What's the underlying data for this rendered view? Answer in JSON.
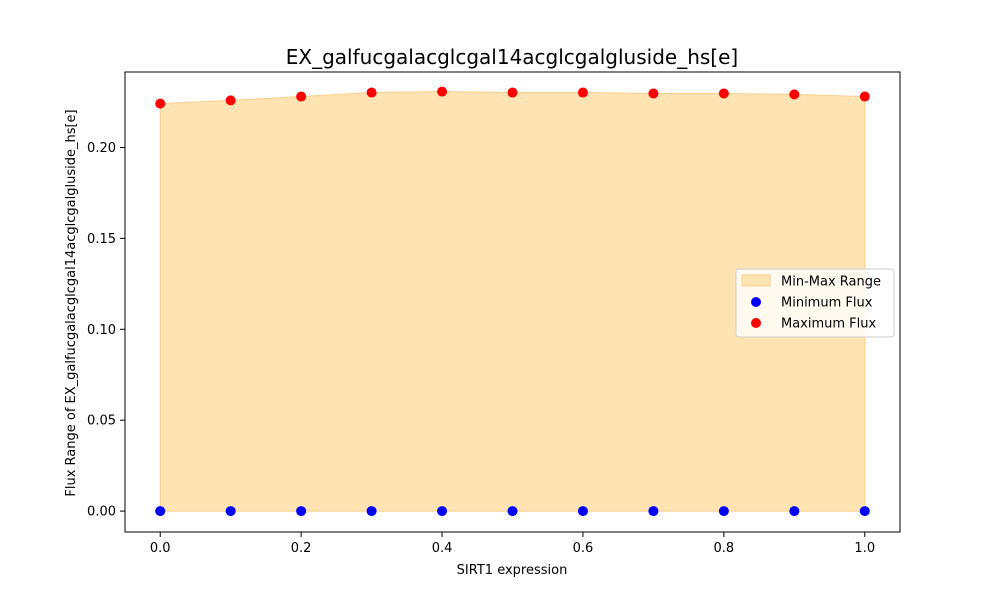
{
  "chart_data": {
    "type": "scatter",
    "title": "EX_galfucgalacglcgal14acglcgalgluside_hs[e]",
    "xlabel": "SIRT1 expression",
    "ylabel": "Flux Range of EX_galfucgalacglcgal14acglcgalgluside_hs[e]",
    "xlim": [
      -0.05,
      1.05
    ],
    "ylim": [
      -0.0115,
      0.2415
    ],
    "x_ticks": [
      "0.0",
      "0.2",
      "0.4",
      "0.6",
      "0.8",
      "1.0"
    ],
    "y_ticks": [
      "0.00",
      "0.05",
      "0.10",
      "0.15",
      "0.20"
    ],
    "x": [
      0.0,
      0.1,
      0.2,
      0.3,
      0.4,
      0.5,
      0.6,
      0.7,
      0.8,
      0.9,
      1.0
    ],
    "series": [
      {
        "name": "Min-Max Range",
        "kind": "fill_between",
        "color": "#ffe3b3"
      },
      {
        "name": "Minimum Flux",
        "kind": "scatter",
        "color": "#0000ff",
        "values": [
          0,
          0,
          0,
          0,
          0,
          0,
          0,
          0,
          0,
          0,
          0
        ]
      },
      {
        "name": "Maximum Flux",
        "kind": "scatter",
        "color": "#ff0000",
        "values": [
          0.2241,
          0.2259,
          0.228,
          0.2302,
          0.2307,
          0.2302,
          0.2302,
          0.2297,
          0.2297,
          0.2292,
          0.228
        ]
      }
    ],
    "grid": false,
    "legend_position": "center-right"
  }
}
